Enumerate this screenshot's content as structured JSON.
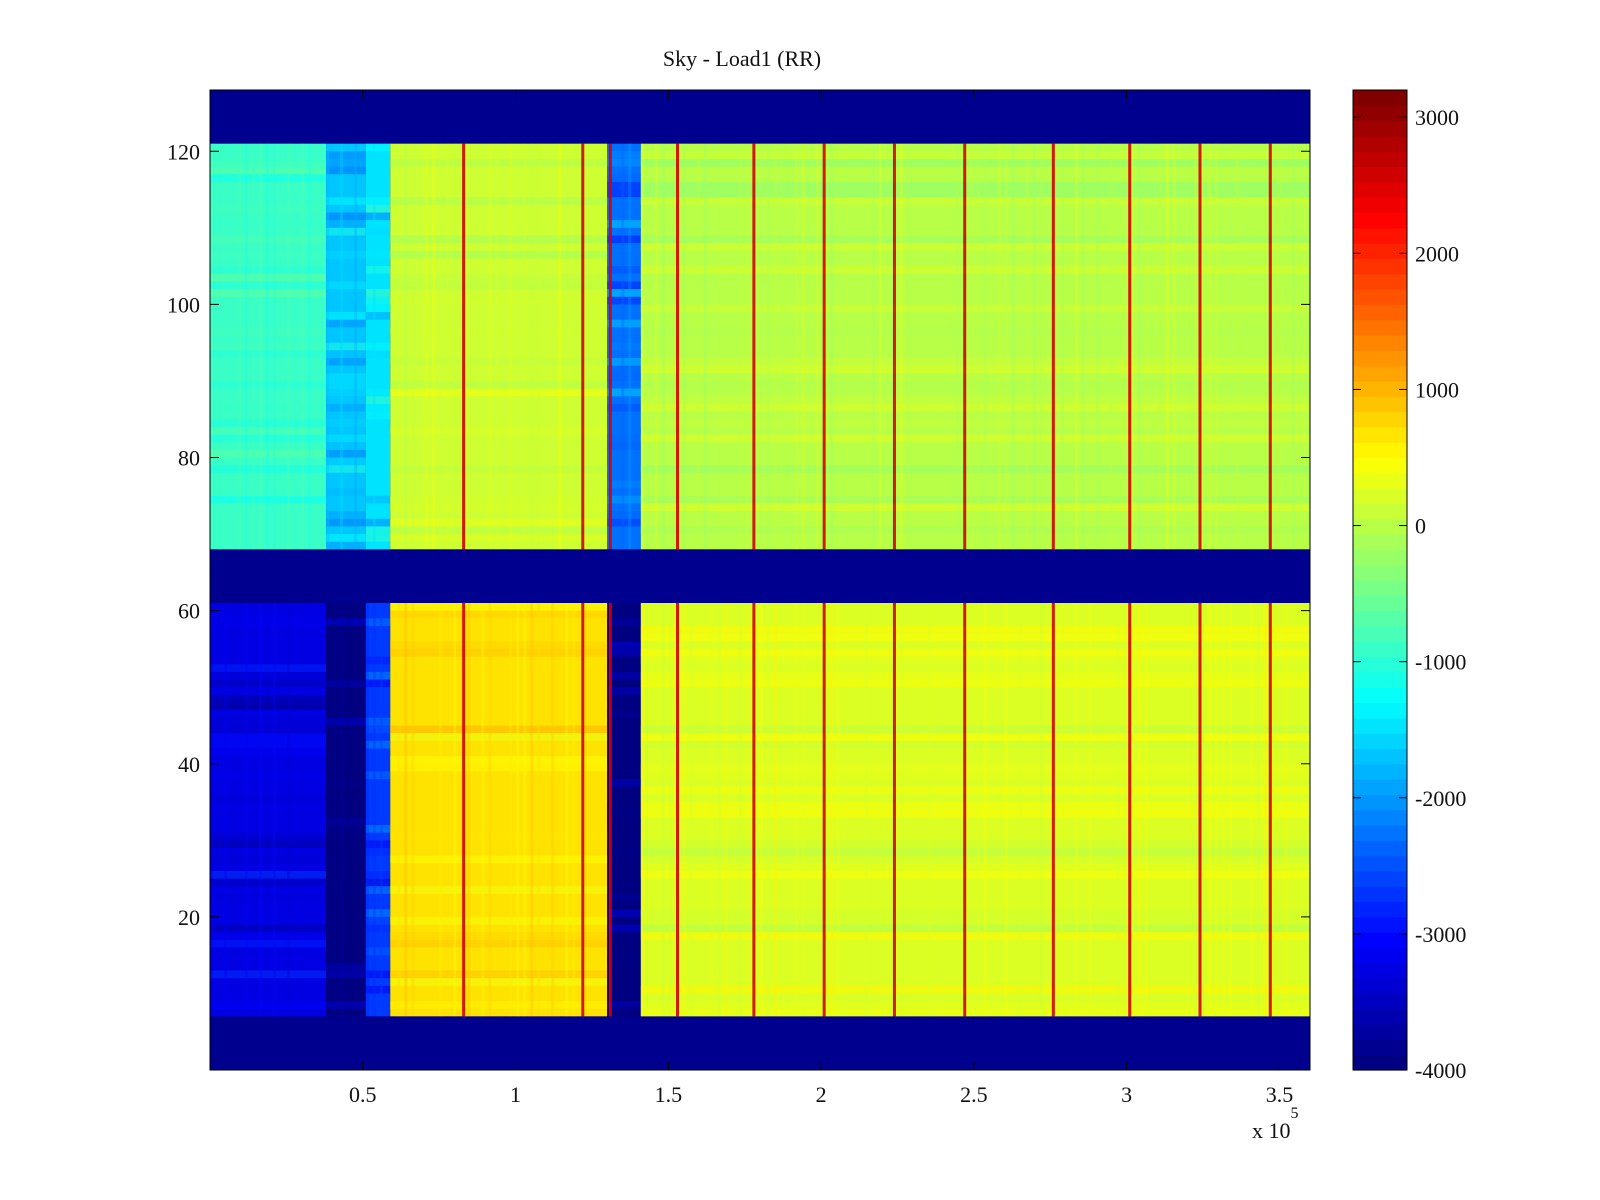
{
  "chart_data": {
    "type": "heatmap",
    "title": "Sky - Load1 (RR)",
    "xlabel": "",
    "ylabel": "",
    "x_exponent_label": "x 10",
    "x_exponent_power": "5",
    "xlim": [
      0,
      360000
    ],
    "ylim": [
      0,
      128
    ],
    "x_ticks": [
      {
        "value": 50000,
        "label": "0.5"
      },
      {
        "value": 100000,
        "label": "1"
      },
      {
        "value": 150000,
        "label": "1.5"
      },
      {
        "value": 200000,
        "label": "2"
      },
      {
        "value": 250000,
        "label": "2.5"
      },
      {
        "value": 300000,
        "label": "3"
      },
      {
        "value": 350000,
        "label": "3.5"
      }
    ],
    "y_ticks": [
      {
        "value": 20,
        "label": "20"
      },
      {
        "value": 40,
        "label": "40"
      },
      {
        "value": 60,
        "label": "60"
      },
      {
        "value": 80,
        "label": "80"
      },
      {
        "value": 100,
        "label": "100"
      },
      {
        "value": 120,
        "label": "120"
      }
    ],
    "colorbar": {
      "min": -4000,
      "max": 3200,
      "colormap": "jet",
      "ticks": [
        {
          "value": 3000,
          "label": "3000"
        },
        {
          "value": 2000,
          "label": "2000"
        },
        {
          "value": 1000,
          "label": "1000"
        },
        {
          "value": 0,
          "label": "0"
        },
        {
          "value": -1000,
          "label": "-1000"
        },
        {
          "value": -2000,
          "label": "-2000"
        },
        {
          "value": -3000,
          "label": "-3000"
        },
        {
          "value": -4000,
          "label": "-4000"
        }
      ]
    },
    "channel_bands": [
      {
        "y_from": 0,
        "y_to": 7,
        "state": "masked"
      },
      {
        "y_from": 7,
        "y_to": 61,
        "state": "data"
      },
      {
        "y_from": 61,
        "y_to": 68,
        "state": "masked"
      },
      {
        "y_from": 68,
        "y_to": 121,
        "state": "data"
      },
      {
        "y_from": 121,
        "y_to": 128,
        "state": "masked"
      }
    ],
    "time_segments": [
      {
        "x_from": 0,
        "x_to": 38000,
        "lower_value": -3300,
        "upper_value": -900
      },
      {
        "x_from": 38000,
        "x_to": 51000,
        "lower_value": -4000,
        "upper_value": -1700
      },
      {
        "x_from": 51000,
        "x_to": 59000,
        "lower_value": -2700,
        "upper_value": -1500
      },
      {
        "x_from": 59000,
        "x_to": 130000,
        "lower_value": 700,
        "upper_value": 150
      },
      {
        "x_from": 130000,
        "x_to": 141000,
        "lower_value": -4000,
        "upper_value": -2300
      },
      {
        "x_from": 141000,
        "x_to": 360000,
        "lower_value": 250,
        "upper_value": 0
      }
    ],
    "vertical_spikes_x": [
      83000,
      122000,
      131000,
      153000,
      178000,
      201000,
      224000,
      247000,
      276000,
      301000,
      324000,
      347000
    ],
    "spike_value": 2600,
    "notes": []
  },
  "colors": {
    "masked": "#00008f",
    "axis": "#000000",
    "background": "#ffffff"
  }
}
